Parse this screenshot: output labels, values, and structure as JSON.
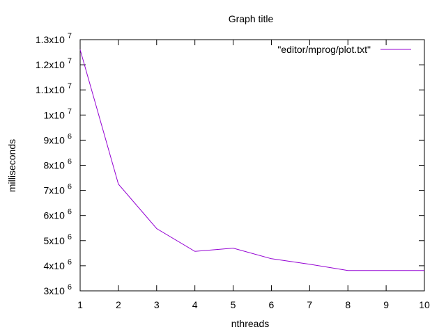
{
  "chart_data": {
    "type": "line",
    "title": "Graph title",
    "xlabel": "nthreads",
    "ylabel": "milliseconds",
    "xlim": [
      1,
      10
    ],
    "ylim": [
      3000000,
      13000000
    ],
    "x_ticks": [
      {
        "value": 1,
        "label": "1"
      },
      {
        "value": 2,
        "label": "2"
      },
      {
        "value": 3,
        "label": "3"
      },
      {
        "value": 4,
        "label": "4"
      },
      {
        "value": 5,
        "label": "5"
      },
      {
        "value": 6,
        "label": "6"
      },
      {
        "value": 7,
        "label": "7"
      },
      {
        "value": 8,
        "label": "8"
      },
      {
        "value": 9,
        "label": "9"
      },
      {
        "value": 10,
        "label": "10"
      }
    ],
    "y_ticks": [
      {
        "value": 3000000,
        "mant": "3x10",
        "exp": "6"
      },
      {
        "value": 4000000,
        "mant": "4x10",
        "exp": "6"
      },
      {
        "value": 5000000,
        "mant": "5x10",
        "exp": "6"
      },
      {
        "value": 6000000,
        "mant": "6x10",
        "exp": "6"
      },
      {
        "value": 7000000,
        "mant": "7x10",
        "exp": "6"
      },
      {
        "value": 8000000,
        "mant": "8x10",
        "exp": "6"
      },
      {
        "value": 9000000,
        "mant": "9x10",
        "exp": "6"
      },
      {
        "value": 10000000,
        "mant": "1x10",
        "exp": "7"
      },
      {
        "value": 11000000,
        "mant": "1.1x10",
        "exp": "7"
      },
      {
        "value": 12000000,
        "mant": "1.2x10",
        "exp": "7"
      },
      {
        "value": 13000000,
        "mant": "1.3x10",
        "exp": "7"
      }
    ],
    "grid": false,
    "legend_position": "top-right",
    "series": [
      {
        "name": "\"editor/mprog/plot.txt\"",
        "color": "#9400d3",
        "x": [
          1,
          2,
          3,
          4,
          5,
          6,
          7,
          8,
          9,
          10
        ],
        "y": [
          12600000,
          7250000,
          5480000,
          4570000,
          4700000,
          4280000,
          4060000,
          3810000,
          3810000,
          3810000
        ]
      }
    ]
  }
}
